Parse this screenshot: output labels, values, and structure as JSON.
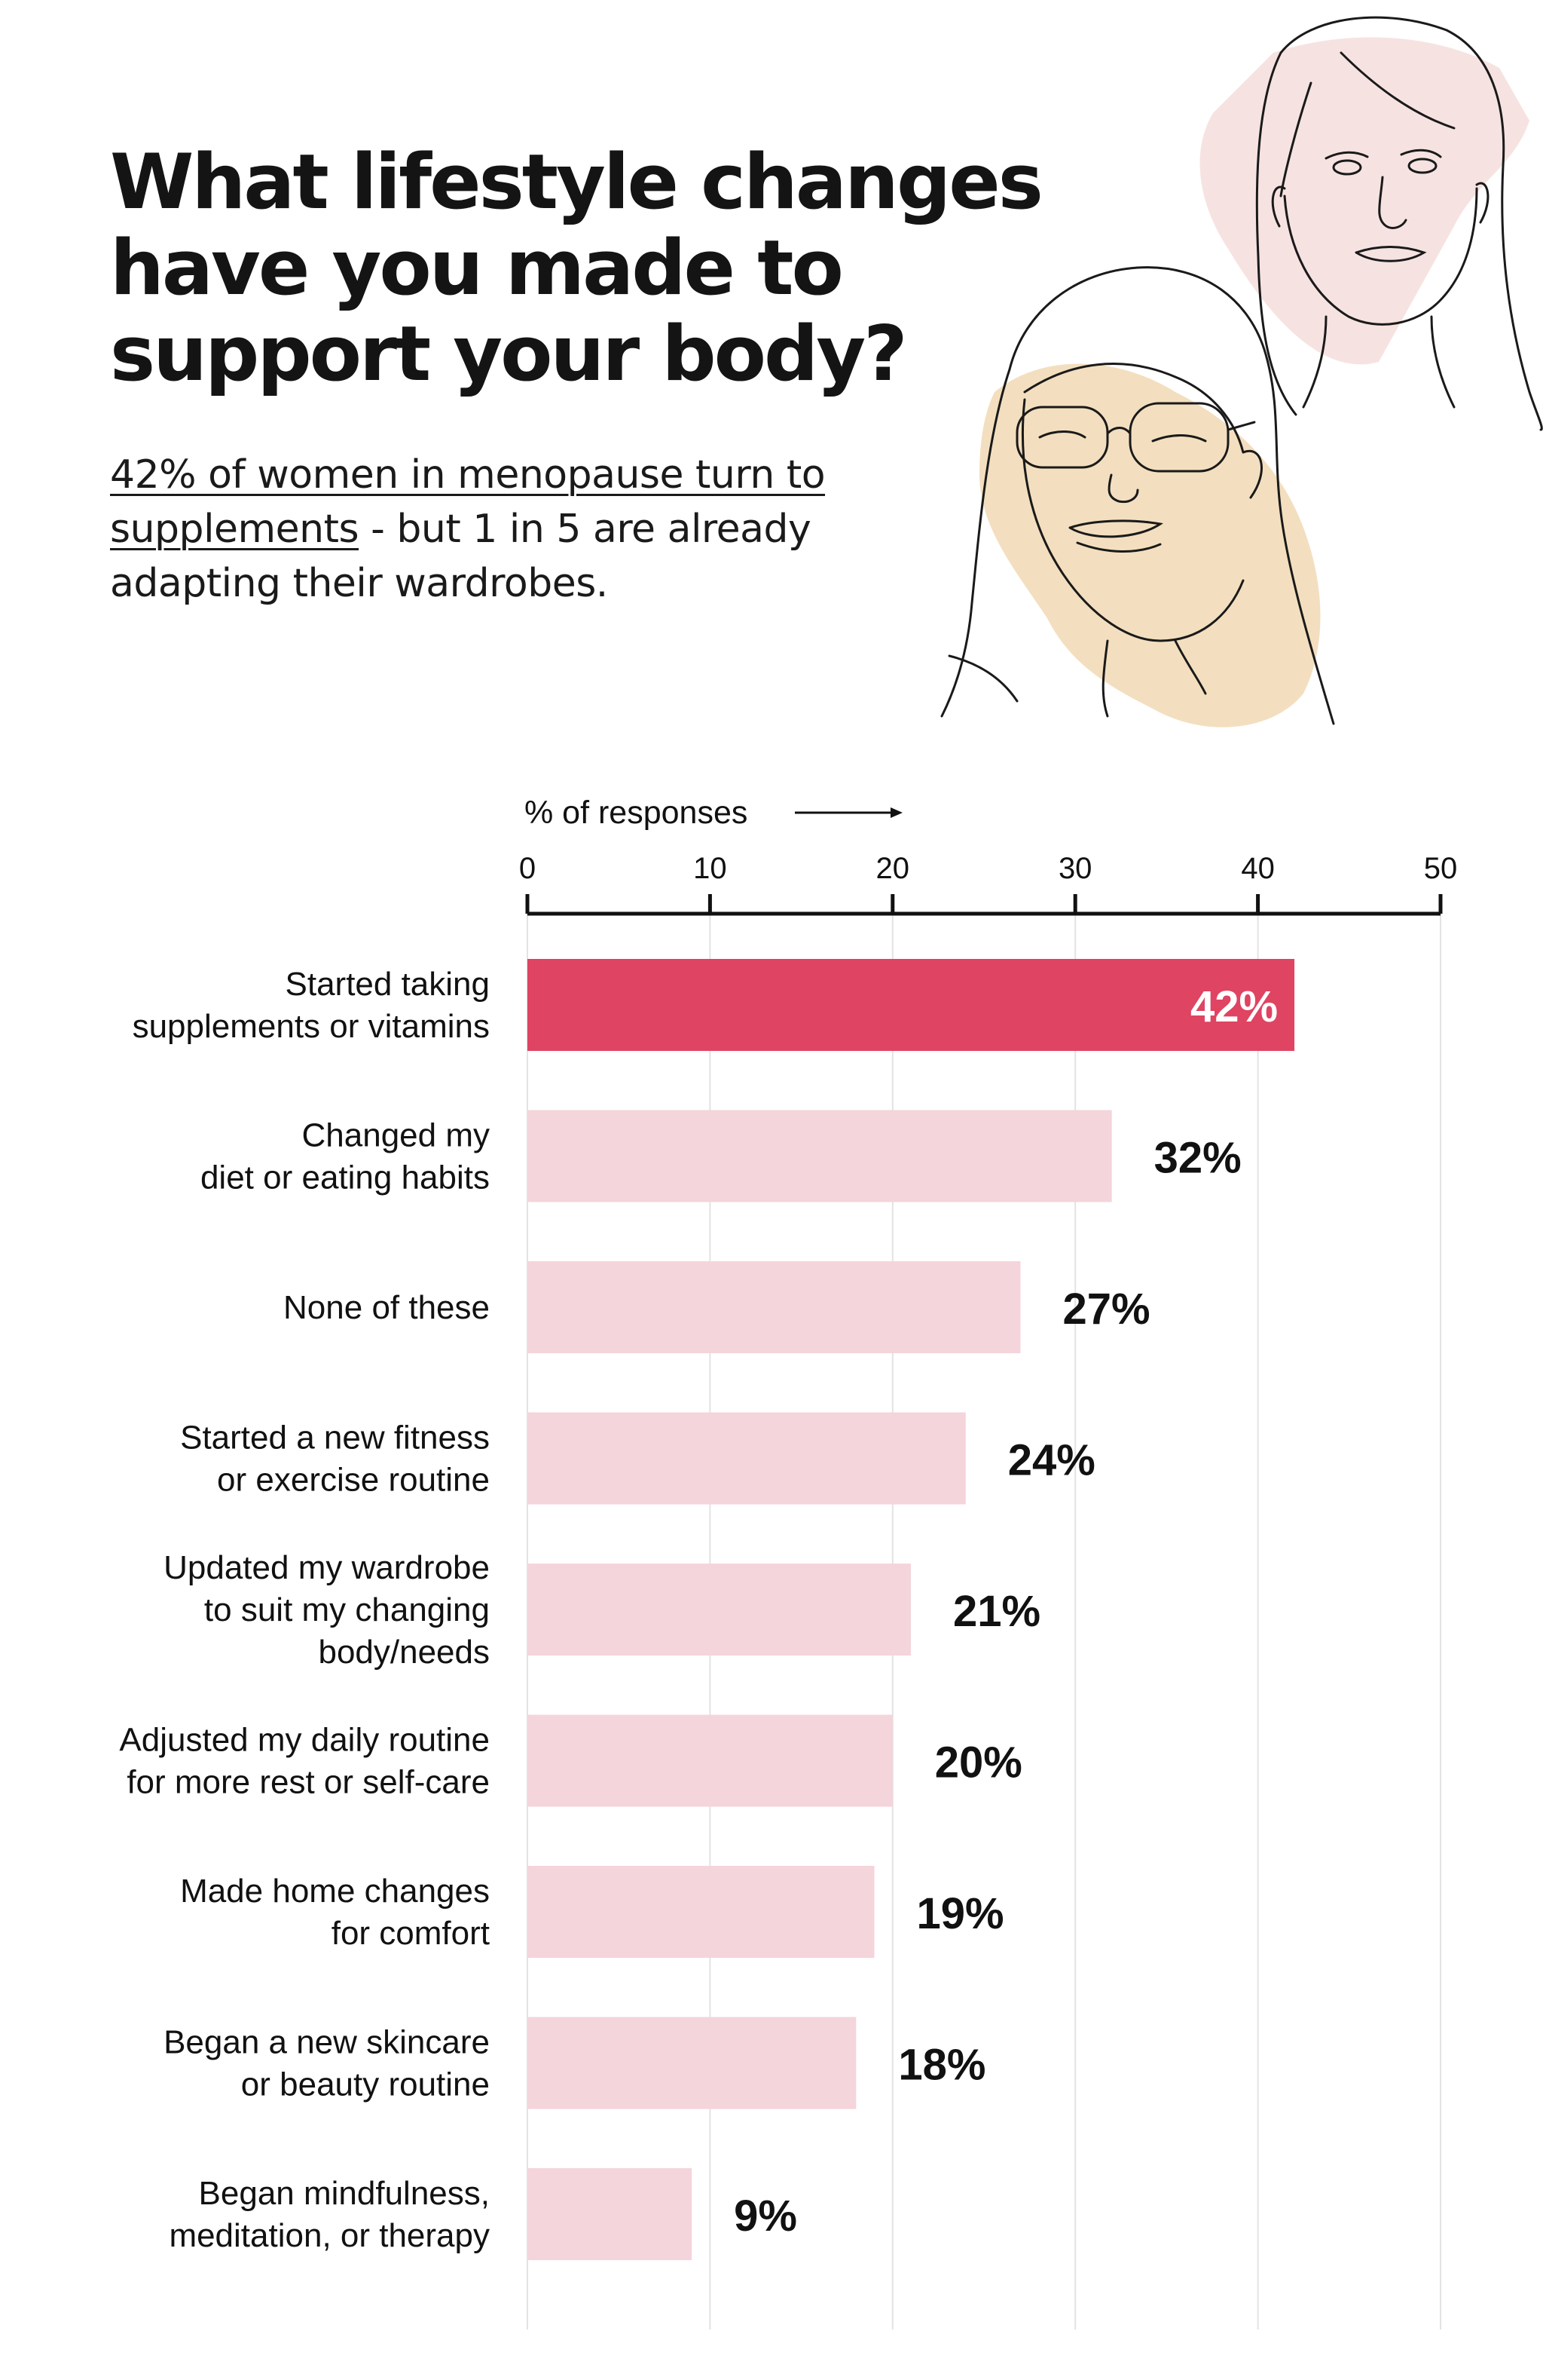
{
  "header": {
    "title": "What lifestyle changes have you made to support your body?",
    "subtitle_link": "42% of women in menopause turn to supplements",
    "subtitle_rest": " - but 1 in 5 are already adapting their wardrobes."
  },
  "colors": {
    "highlight_bar": "#DF4462",
    "bar": "#F4D5DB",
    "axis": "#111111",
    "grid": "#E3E3E3",
    "illustration_pink": "#F6E3E1",
    "illustration_tan": "#F3DFBF"
  },
  "chart_data": {
    "type": "bar",
    "orientation": "horizontal",
    "xlabel": "% of responses",
    "xlim": [
      0,
      50
    ],
    "xticks": [
      "0",
      "10",
      "20",
      "30",
      "40",
      "50"
    ],
    "grid": true,
    "categories": [
      [
        "Started taking",
        "supplements or vitamins"
      ],
      [
        "Changed my",
        "diet or eating habits"
      ],
      [
        "None of these"
      ],
      [
        "Started a new fitness",
        "or exercise routine"
      ],
      [
        "Updated my wardrobe",
        "to suit my changing",
        "body/needs"
      ],
      [
        "Adjusted my daily routine",
        "for more rest or self-care"
      ],
      [
        "Made home changes",
        "for comfort"
      ],
      [
        "Began a new skincare",
        "or beauty routine"
      ],
      [
        "Began mindfulness,",
        "meditation, or therapy"
      ]
    ],
    "values": [
      42,
      32,
      27,
      24,
      21,
      20,
      19,
      18,
      9
    ],
    "value_labels": [
      "42%",
      "32%",
      "27%",
      "24%",
      "21%",
      "20%",
      "19%",
      "18%",
      "9%"
    ],
    "highlight_index": 0
  }
}
